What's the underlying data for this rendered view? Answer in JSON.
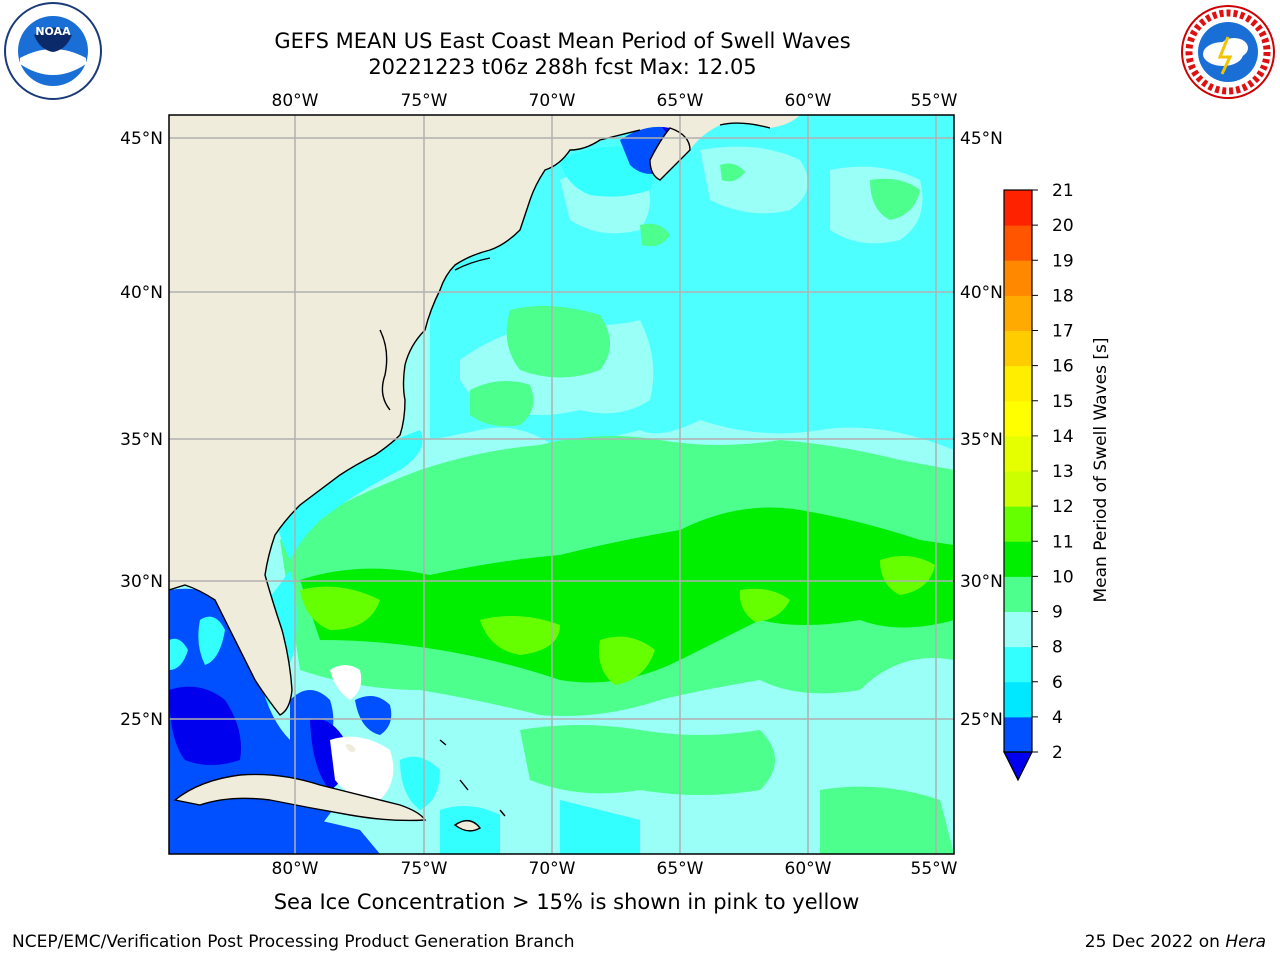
{
  "title_line1": "GEFS MEAN US East Coast Mean Period of Swell Waves",
  "title_line2": "20221223 t06z 288h fcst   Max: 12.05",
  "logos": {
    "left": "NOAA",
    "right": "NATIONAL WEATHER SERVICE"
  },
  "lon_ticks": [
    "80°W",
    "75°W",
    "70°W",
    "65°W",
    "60°W",
    "55°W"
  ],
  "lat_ticks": [
    "45°N",
    "40°N",
    "35°N",
    "30°N",
    "25°N"
  ],
  "colorbar": {
    "label": "Mean Period of Swell Waves [s]",
    "levels": [
      "2",
      "4",
      "6",
      "8",
      "9",
      "10",
      "11",
      "12",
      "13",
      "14",
      "15",
      "16",
      "17",
      "18",
      "19",
      "20",
      "21"
    ],
    "colors": [
      "#0050ff",
      "#00e8ff",
      "#33ffff",
      "#99fff7",
      "#4dff8c",
      "#00ee00",
      "#66ff00",
      "#ccff00",
      "#e6ff00",
      "#ffff00",
      "#ffee00",
      "#ffcc00",
      "#ffaa00",
      "#ff8800",
      "#ff5500",
      "#ff2200",
      "#ff0000"
    ],
    "under_color": "#0000ee"
  },
  "chart_data": {
    "type": "heatmap",
    "region": "US East Coast / western North Atlantic",
    "lon_range": [
      -85,
      -54.4
    ],
    "lat_range": [
      20.3,
      45.8
    ],
    "max_value": 12.05,
    "units": "s",
    "field_summary": [
      {
        "area": "Gulf of Maine / Bay of Fundy",
        "period_s": "2-6"
      },
      {
        "area": "Gulf of Mexico and Florida Straits",
        "period_s": "2-6"
      },
      {
        "area": "North Atlantic north of 35N",
        "period_s": "6-9"
      },
      {
        "area": "Subtropical band 26N-33N",
        "period_s": "9-11"
      },
      {
        "area": "Local maxima near 28N",
        "period_s": "11-12"
      },
      {
        "area": "South of 25N",
        "period_s": "8-10"
      }
    ]
  },
  "ice_note": "Sea Ice Concentration > 15% is shown in pink to yellow",
  "footer": {
    "left": "NCEP/EMC/Verification Post Processing Product Generation Branch",
    "right_date": "25 Dec 2022 on ",
    "right_machine": "Hera"
  }
}
